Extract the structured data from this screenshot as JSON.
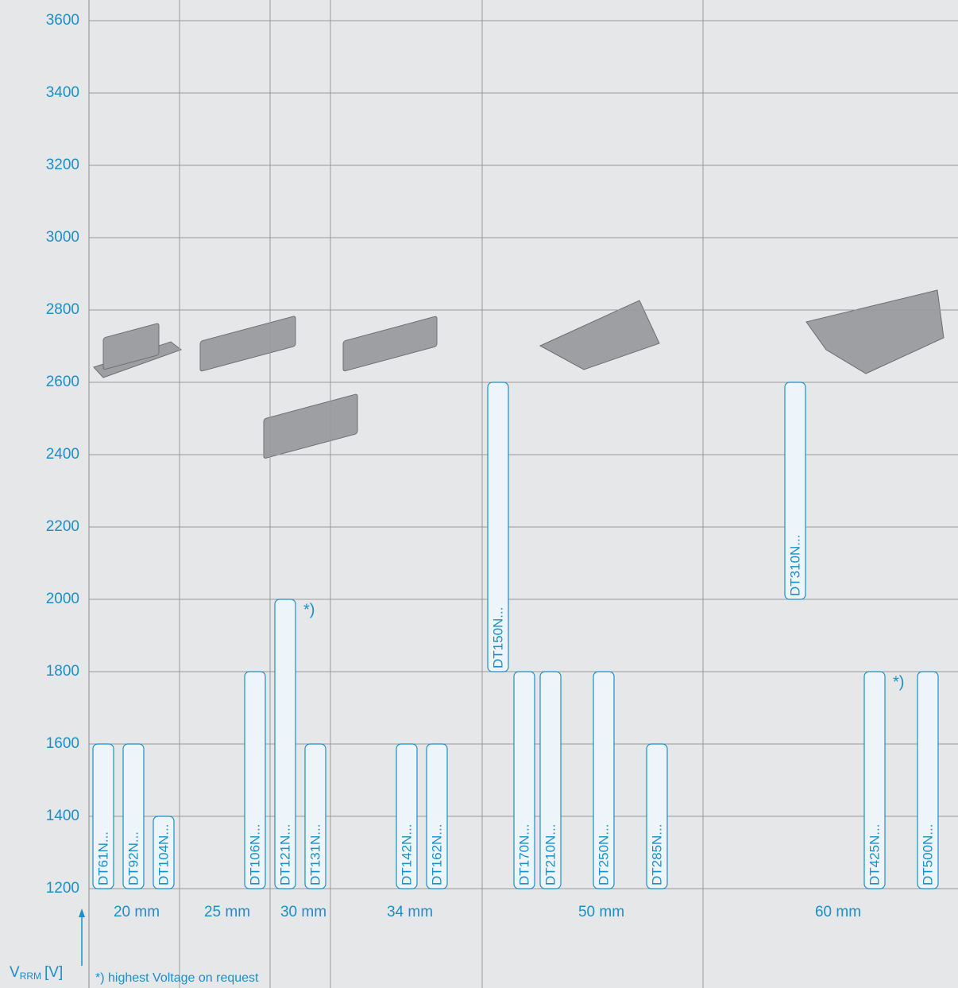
{
  "chart_data": {
    "type": "floating-bar",
    "categories": [
      "DT61N...",
      "DT92N...",
      "DT104N...",
      "DT106N...",
      "DT121N...",
      "DT131N...",
      "DT142N...",
      "DT162N...",
      "DT150N...",
      "DT170N...",
      "DT210N...",
      "DT250N...",
      "DT285N...",
      "DT310N...",
      "DT425N...",
      "DT500N..."
    ],
    "low": [
      1200,
      1200,
      1200,
      1200,
      1200,
      1200,
      1200,
      1200,
      1800,
      1200,
      1200,
      1200,
      1200,
      2000,
      1200,
      1200
    ],
    "high": [
      1600,
      1600,
      1400,
      1800,
      2000,
      1600,
      1600,
      1600,
      2600,
      1800,
      1800,
      1800,
      1600,
      2600,
      1800,
      1800
    ],
    "markers": [
      null,
      null,
      null,
      null,
      "*)",
      null,
      null,
      null,
      null,
      null,
      null,
      null,
      null,
      null,
      "*)",
      null
    ],
    "groups": [
      "20 mm",
      "25 mm",
      "30 mm",
      "34 mm",
      "50 mm",
      "60 mm"
    ],
    "ylim": [
      1200,
      3600
    ],
    "yticks": [
      1200,
      1400,
      1600,
      1800,
      2000,
      2200,
      2400,
      2600,
      2800,
      3000,
      3200,
      3400,
      3600
    ],
    "y_label": {
      "symbol": "V",
      "subscript": "RRM",
      "unit": "[V]"
    },
    "footnote": "*) highest Voltage on request",
    "color": "#1a8fc9",
    "bar_fill": "#eef5fa",
    "grid": true
  }
}
